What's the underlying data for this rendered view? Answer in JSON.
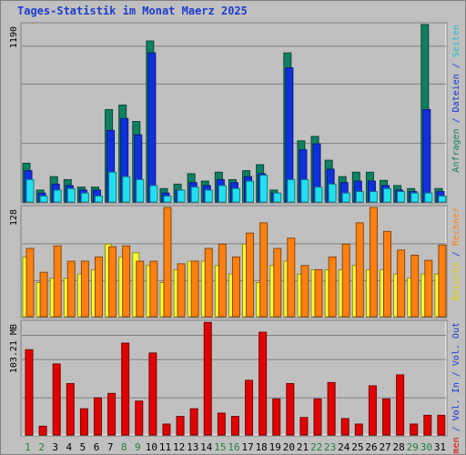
{
  "title": "Tages-Statistik im Monat Maerz 2025",
  "colors": {
    "hits": "#108060",
    "files": "#1030e0",
    "pages": "#20e0f0",
    "visits": "#ffff30",
    "hosts": "#ff8010",
    "kbytes": "#e00000",
    "weekend_day": "#208040",
    "weekday": "#000000",
    "label_blue": "#1e3ccd"
  },
  "chart_data": [
    {
      "type": "bar",
      "panel": "top",
      "ymax_label": "1190",
      "ylim": [
        0,
        1190
      ],
      "right_labels": [
        {
          "text": "Anfragen",
          "color": "#108060"
        },
        {
          "text": " / ",
          "color": "#1e3ccd"
        },
        {
          "text": "Dateien",
          "color": "#1030e0"
        },
        {
          "text": " / ",
          "color": "#1e3ccd"
        },
        {
          "text": "Seiten",
          "color": "#20c0d0"
        }
      ],
      "categories": [
        1,
        2,
        3,
        4,
        5,
        6,
        7,
        8,
        9,
        10,
        11,
        12,
        13,
        14,
        15,
        16,
        17,
        18,
        19,
        20,
        21,
        22,
        23,
        24,
        25,
        26,
        27,
        28,
        29,
        30,
        31
      ],
      "series": [
        {
          "name": "Anfragen",
          "values": [
            260,
            80,
            170,
            150,
            100,
            100,
            620,
            650,
            540,
            1080,
            90,
            120,
            190,
            140,
            200,
            150,
            210,
            250,
            80,
            1000,
            410,
            440,
            280,
            170,
            200,
            200,
            145,
            110,
            90,
            1190,
            90
          ]
        },
        {
          "name": "Dateien",
          "values": [
            210,
            60,
            120,
            110,
            80,
            80,
            480,
            560,
            450,
            1000,
            60,
            80,
            130,
            110,
            150,
            130,
            170,
            190,
            60,
            900,
            350,
            390,
            220,
            130,
            140,
            140,
            110,
            80,
            70,
            620,
            70
          ]
        },
        {
          "name": "Seiten",
          "values": [
            150,
            40,
            80,
            90,
            60,
            40,
            200,
            170,
            150,
            110,
            40,
            80,
            100,
            80,
            110,
            90,
            140,
            180,
            60,
            150,
            150,
            100,
            120,
            60,
            70,
            70,
            90,
            70,
            60,
            60,
            40
          ]
        }
      ]
    },
    {
      "type": "bar",
      "panel": "middle",
      "ymax_label": "128",
      "ylim": [
        0,
        128
      ],
      "right_labels": [
        {
          "text": "Besuche",
          "color": "#e0d000"
        },
        {
          "text": " / ",
          "color": "#1e3ccd"
        },
        {
          "text": "Rechner",
          "color": "#ff8010"
        }
      ],
      "categories": [
        1,
        2,
        3,
        4,
        5,
        6,
        7,
        8,
        9,
        10,
        11,
        12,
        13,
        14,
        15,
        16,
        17,
        18,
        19,
        20,
        21,
        22,
        23,
        24,
        25,
        26,
        27,
        28,
        29,
        30,
        31
      ],
      "series": [
        {
          "name": "Besuche",
          "values": [
            70,
            40,
            45,
            45,
            50,
            55,
            85,
            70,
            75,
            60,
            40,
            55,
            65,
            65,
            60,
            50,
            85,
            40,
            60,
            65,
            50,
            55,
            55,
            55,
            60,
            55,
            55,
            50,
            45,
            50,
            50
          ]
        },
        {
          "name": "Rechner",
          "values": [
            80,
            52,
            83,
            65,
            65,
            70,
            82,
            83,
            65,
            65,
            128,
            62,
            65,
            80,
            85,
            70,
            98,
            110,
            80,
            92,
            60,
            55,
            70,
            85,
            110,
            128,
            100,
            78,
            72,
            66,
            84
          ]
        }
      ]
    },
    {
      "type": "bar",
      "panel": "bottom",
      "ymax_label": "103.21 MB",
      "ylim": [
        0,
        103.21
      ],
      "right_labels": [
        {
          "text": "Volumen",
          "color": "#e00000"
        },
        {
          "text": " / ",
          "color": "#1e3ccd"
        },
        {
          "text": "Vol. In",
          "color": "#1030e0"
        },
        {
          "text": " / ",
          "color": "#1e3ccd"
        },
        {
          "text": "Vol. Out",
          "color": "#1e3ccd"
        }
      ],
      "categories": [
        1,
        2,
        3,
        4,
        5,
        6,
        7,
        8,
        9,
        10,
        11,
        12,
        13,
        14,
        15,
        16,
        17,
        18,
        19,
        20,
        21,
        22,
        23,
        24,
        25,
        26,
        27,
        28,
        29,
        30,
        31
      ],
      "series": [
        {
          "name": "Volumen",
          "values": [
            78,
            8,
            65,
            47,
            24,
            34,
            38,
            84,
            31,
            75,
            10,
            17,
            24,
            103,
            20,
            17,
            50,
            94,
            33,
            47,
            16,
            33,
            48,
            15,
            10,
            45,
            33,
            55,
            10,
            18,
            18
          ]
        }
      ],
      "weekend_days": [
        1,
        2,
        8,
        9,
        15,
        16,
        22,
        23,
        29,
        30
      ]
    }
  ]
}
